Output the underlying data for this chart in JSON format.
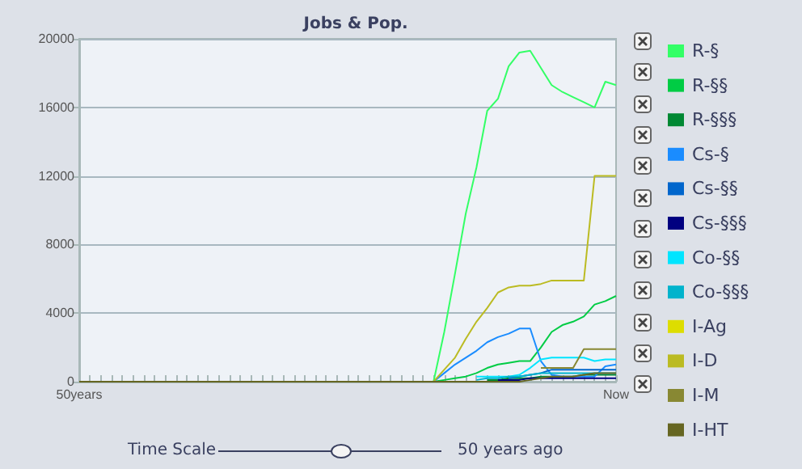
{
  "chart_data": {
    "type": "line",
    "title": "Jobs & Pop.",
    "categories": [
      "50years",
      null,
      null,
      null,
      null,
      null,
      null,
      null,
      null,
      null,
      null,
      null,
      null,
      null,
      null,
      null,
      null,
      null,
      null,
      null,
      null,
      null,
      null,
      null,
      null,
      null,
      null,
      null,
      null,
      null,
      null,
      null,
      null,
      null,
      null,
      null,
      null,
      null,
      null,
      null,
      null,
      null,
      null,
      null,
      null,
      null,
      null,
      null,
      null,
      null,
      "Now"
    ],
    "series": [
      {
        "name": "R-§",
        "color": "#33ff66",
        "values": [
          null,
          null,
          null,
          null,
          null,
          null,
          null,
          null,
          null,
          null,
          null,
          null,
          null,
          null,
          null,
          null,
          null,
          null,
          null,
          null,
          null,
          null,
          null,
          null,
          null,
          null,
          null,
          null,
          null,
          null,
          null,
          null,
          null,
          0,
          2900,
          6300,
          9800,
          12500,
          15800,
          16500,
          18400,
          19200,
          19300,
          18300,
          17300,
          16900,
          16600,
          16300,
          16000,
          17500,
          17300
        ]
      },
      {
        "name": "R-§§",
        "color": "#00cc44",
        "values": [
          null,
          null,
          null,
          null,
          null,
          null,
          null,
          null,
          null,
          null,
          null,
          null,
          null,
          null,
          null,
          null,
          null,
          null,
          null,
          null,
          null,
          null,
          null,
          null,
          null,
          null,
          null,
          null,
          null,
          null,
          null,
          null,
          null,
          0,
          100,
          200,
          300,
          500,
          800,
          1000,
          1100,
          1200,
          1200,
          2000,
          2900,
          3300,
          3500,
          3800,
          4500,
          4700,
          5000
        ]
      },
      {
        "name": "R-§§§",
        "color": "#008833",
        "values": [
          null,
          null,
          null,
          null,
          null,
          null,
          null,
          null,
          null,
          null,
          null,
          null,
          null,
          null,
          null,
          null,
          null,
          null,
          null,
          null,
          null,
          null,
          null,
          null,
          null,
          null,
          null,
          null,
          null,
          null,
          null,
          null,
          null,
          null,
          null,
          null,
          null,
          null,
          100,
          100,
          200,
          200,
          200,
          300,
          300,
          300,
          300,
          400,
          400,
          400,
          400
        ]
      },
      {
        "name": "Cs-§",
        "color": "#1a8cff",
        "values": [
          null,
          null,
          null,
          null,
          null,
          null,
          null,
          null,
          null,
          null,
          null,
          null,
          null,
          null,
          null,
          null,
          null,
          null,
          null,
          null,
          null,
          null,
          null,
          null,
          null,
          null,
          null,
          null,
          null,
          null,
          null,
          null,
          null,
          0,
          500,
          1000,
          1400,
          1800,
          2300,
          2600,
          2800,
          3100,
          3100,
          1200,
          400,
          300,
          300,
          300,
          300,
          900,
          1000
        ]
      },
      {
        "name": "Cs-§§",
        "color": "#0066cc",
        "values": [
          null,
          null,
          null,
          null,
          null,
          null,
          null,
          null,
          null,
          null,
          null,
          null,
          null,
          null,
          null,
          null,
          null,
          null,
          null,
          null,
          null,
          null,
          null,
          null,
          null,
          null,
          null,
          null,
          null,
          null,
          null,
          null,
          null,
          null,
          null,
          null,
          null,
          null,
          null,
          null,
          200,
          300,
          400,
          500,
          700,
          700,
          700,
          700,
          700,
          700,
          700
        ]
      },
      {
        "name": "Cs-§§§",
        "color": "#000080",
        "values": [
          null,
          null,
          null,
          null,
          null,
          null,
          null,
          null,
          null,
          null,
          null,
          null,
          null,
          null,
          null,
          null,
          null,
          null,
          null,
          null,
          null,
          null,
          null,
          null,
          null,
          null,
          null,
          null,
          null,
          null,
          null,
          null,
          null,
          null,
          null,
          null,
          null,
          null,
          null,
          100,
          100,
          100,
          200,
          200,
          200,
          200,
          200,
          200,
          200,
          200,
          200
        ]
      },
      {
        "name": "Co-§§",
        "color": "#00e5ff",
        "values": [
          null,
          null,
          null,
          null,
          null,
          null,
          null,
          null,
          null,
          null,
          null,
          null,
          null,
          null,
          null,
          null,
          null,
          null,
          null,
          null,
          null,
          null,
          null,
          null,
          null,
          null,
          null,
          null,
          null,
          null,
          null,
          null,
          null,
          null,
          null,
          null,
          null,
          300,
          300,
          300,
          300,
          400,
          800,
          1300,
          1400,
          1400,
          1400,
          1400,
          1200,
          1300,
          1300
        ]
      },
      {
        "name": "Co-§§§",
        "color": "#00b3cc",
        "values": [
          null,
          null,
          null,
          null,
          null,
          null,
          null,
          null,
          null,
          null,
          null,
          null,
          null,
          null,
          null,
          null,
          null,
          null,
          null,
          null,
          null,
          null,
          null,
          null,
          null,
          null,
          null,
          null,
          null,
          null,
          null,
          null,
          null,
          null,
          null,
          null,
          null,
          100,
          200,
          200,
          300,
          300,
          400,
          500,
          500,
          500,
          500,
          500,
          500,
          500,
          500
        ]
      },
      {
        "name": "I-Ag",
        "color": "#dddd00",
        "values": [
          null,
          null,
          null,
          null,
          null,
          null,
          null,
          null,
          null,
          null,
          null,
          null,
          null,
          null,
          null,
          null,
          null,
          null,
          null,
          null,
          null,
          null,
          null,
          null,
          null,
          null,
          null,
          null,
          null,
          null,
          null,
          null,
          null,
          null,
          null,
          null,
          null,
          null,
          null,
          null,
          null,
          null,
          null,
          null,
          null,
          null,
          null,
          null,
          null,
          null,
          null
        ]
      },
      {
        "name": "I-D",
        "color": "#bbbb22",
        "values": [
          null,
          null,
          null,
          null,
          null,
          null,
          null,
          null,
          null,
          null,
          null,
          null,
          null,
          null,
          null,
          null,
          null,
          null,
          null,
          null,
          null,
          null,
          null,
          null,
          null,
          null,
          null,
          null,
          null,
          null,
          null,
          null,
          null,
          0,
          700,
          1400,
          2500,
          3500,
          4300,
          5200,
          5500,
          5600,
          5600,
          5700,
          5900,
          5900,
          5900,
          5900,
          12000,
          12000,
          12000
        ]
      },
      {
        "name": "I-M",
        "color": "#888833",
        "values": [
          null,
          null,
          null,
          null,
          null,
          null,
          null,
          null,
          null,
          null,
          null,
          null,
          null,
          null,
          null,
          null,
          null,
          null,
          null,
          null,
          null,
          null,
          null,
          null,
          null,
          null,
          null,
          null,
          null,
          null,
          null,
          null,
          null,
          null,
          null,
          null,
          null,
          null,
          null,
          null,
          null,
          null,
          null,
          800,
          800,
          800,
          800,
          1900,
          1900,
          1900,
          1900
        ]
      },
      {
        "name": "I-HT",
        "color": "#666622",
        "values": [
          0,
          0,
          0,
          0,
          0,
          0,
          0,
          0,
          0,
          0,
          0,
          0,
          0,
          0,
          0,
          0,
          0,
          0,
          0,
          0,
          0,
          0,
          0,
          0,
          0,
          0,
          0,
          0,
          0,
          0,
          0,
          0,
          0,
          0,
          0,
          0,
          0,
          0,
          0,
          0,
          0,
          0,
          100,
          200,
          300,
          300,
          300,
          400,
          500,
          500,
          500
        ]
      }
    ],
    "ylim": [
      0,
      20000
    ],
    "yticks": [
      0,
      4000,
      8000,
      12000,
      16000,
      20000
    ],
    "grid": "y",
    "legend": "right",
    "marker": "none",
    "line_style": "solid",
    "annotations": [
      "Time Scale",
      "50 years ago"
    ]
  }
}
